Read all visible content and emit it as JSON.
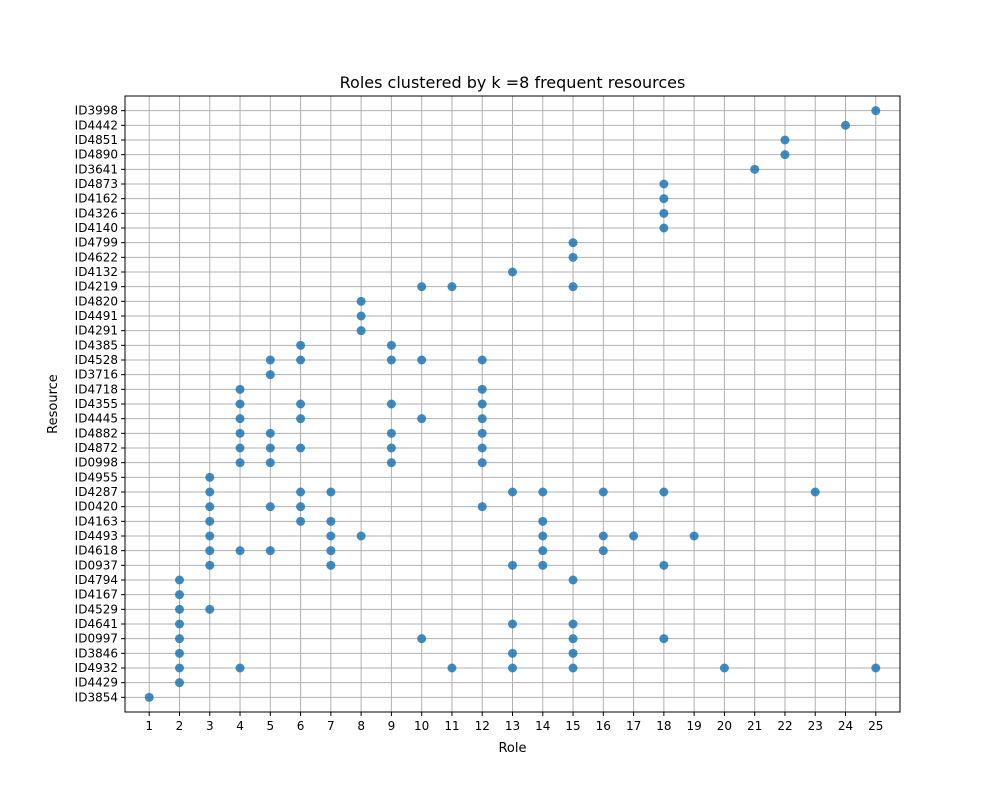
{
  "chart_data": {
    "type": "scatter",
    "title": "Roles clustered by k =8 frequent resources",
    "xlabel": "Role",
    "ylabel": "Resource",
    "x_ticks": [
      "1",
      "2",
      "3",
      "4",
      "5",
      "6",
      "7",
      "8",
      "9",
      "10",
      "11",
      "12",
      "13",
      "14",
      "15",
      "16",
      "17",
      "18",
      "19",
      "20",
      "21",
      "22",
      "23",
      "24",
      "25"
    ],
    "y_categories": [
      "ID3854",
      "ID4429",
      "ID4932",
      "ID3846",
      "ID0997",
      "ID4641",
      "ID4529",
      "ID4167",
      "ID4794",
      "ID0937",
      "ID4618",
      "ID4493",
      "ID4163",
      "ID0420",
      "ID4287",
      "ID4955",
      "ID0998",
      "ID4872",
      "ID4882",
      "ID4445",
      "ID4355",
      "ID4718",
      "ID3716",
      "ID4528",
      "ID4385",
      "ID4291",
      "ID4491",
      "ID4820",
      "ID4219",
      "ID4132",
      "ID4622",
      "ID4799",
      "ID4140",
      "ID4326",
      "ID4162",
      "ID4873",
      "ID3641",
      "ID4890",
      "ID4851",
      "ID4442",
      "ID3998"
    ],
    "xlim": [
      0.2,
      25.8
    ],
    "grid": true,
    "marker_color": "#1f77b4",
    "points": [
      {
        "x": 1,
        "y": "ID3854"
      },
      {
        "x": 2,
        "y": "ID4429"
      },
      {
        "x": 2,
        "y": "ID4932"
      },
      {
        "x": 2,
        "y": "ID3846"
      },
      {
        "x": 2,
        "y": "ID0997"
      },
      {
        "x": 2,
        "y": "ID4641"
      },
      {
        "x": 2,
        "y": "ID4529"
      },
      {
        "x": 2,
        "y": "ID4167"
      },
      {
        "x": 2,
        "y": "ID4794"
      },
      {
        "x": 3,
        "y": "ID4529"
      },
      {
        "x": 3,
        "y": "ID0937"
      },
      {
        "x": 3,
        "y": "ID4618"
      },
      {
        "x": 3,
        "y": "ID4493"
      },
      {
        "x": 3,
        "y": "ID4163"
      },
      {
        "x": 3,
        "y": "ID0420"
      },
      {
        "x": 3,
        "y": "ID4287"
      },
      {
        "x": 3,
        "y": "ID4955"
      },
      {
        "x": 4,
        "y": "ID4932"
      },
      {
        "x": 4,
        "y": "ID4618"
      },
      {
        "x": 4,
        "y": "ID0998"
      },
      {
        "x": 4,
        "y": "ID4872"
      },
      {
        "x": 4,
        "y": "ID4882"
      },
      {
        "x": 4,
        "y": "ID4445"
      },
      {
        "x": 4,
        "y": "ID4355"
      },
      {
        "x": 4,
        "y": "ID4718"
      },
      {
        "x": 5,
        "y": "ID4618"
      },
      {
        "x": 5,
        "y": "ID0420"
      },
      {
        "x": 5,
        "y": "ID0998"
      },
      {
        "x": 5,
        "y": "ID4872"
      },
      {
        "x": 5,
        "y": "ID4882"
      },
      {
        "x": 5,
        "y": "ID3716"
      },
      {
        "x": 5,
        "y": "ID4528"
      },
      {
        "x": 6,
        "y": "ID4163"
      },
      {
        "x": 6,
        "y": "ID0420"
      },
      {
        "x": 6,
        "y": "ID4287"
      },
      {
        "x": 6,
        "y": "ID4872"
      },
      {
        "x": 6,
        "y": "ID4445"
      },
      {
        "x": 6,
        "y": "ID4355"
      },
      {
        "x": 6,
        "y": "ID4528"
      },
      {
        "x": 6,
        "y": "ID4385"
      },
      {
        "x": 7,
        "y": "ID0937"
      },
      {
        "x": 7,
        "y": "ID4618"
      },
      {
        "x": 7,
        "y": "ID4493"
      },
      {
        "x": 7,
        "y": "ID4163"
      },
      {
        "x": 7,
        "y": "ID4287"
      },
      {
        "x": 8,
        "y": "ID4493"
      },
      {
        "x": 8,
        "y": "ID4291"
      },
      {
        "x": 8,
        "y": "ID4491"
      },
      {
        "x": 8,
        "y": "ID4820"
      },
      {
        "x": 9,
        "y": "ID0998"
      },
      {
        "x": 9,
        "y": "ID4872"
      },
      {
        "x": 9,
        "y": "ID4882"
      },
      {
        "x": 9,
        "y": "ID4355"
      },
      {
        "x": 9,
        "y": "ID4528"
      },
      {
        "x": 9,
        "y": "ID4385"
      },
      {
        "x": 10,
        "y": "ID0997"
      },
      {
        "x": 10,
        "y": "ID4445"
      },
      {
        "x": 10,
        "y": "ID4528"
      },
      {
        "x": 10,
        "y": "ID4219"
      },
      {
        "x": 11,
        "y": "ID4932"
      },
      {
        "x": 11,
        "y": "ID4219"
      },
      {
        "x": 12,
        "y": "ID0420"
      },
      {
        "x": 12,
        "y": "ID0998"
      },
      {
        "x": 12,
        "y": "ID4872"
      },
      {
        "x": 12,
        "y": "ID4882"
      },
      {
        "x": 12,
        "y": "ID4445"
      },
      {
        "x": 12,
        "y": "ID4355"
      },
      {
        "x": 12,
        "y": "ID4718"
      },
      {
        "x": 12,
        "y": "ID4528"
      },
      {
        "x": 13,
        "y": "ID4932"
      },
      {
        "x": 13,
        "y": "ID3846"
      },
      {
        "x": 13,
        "y": "ID4641"
      },
      {
        "x": 13,
        "y": "ID0937"
      },
      {
        "x": 13,
        "y": "ID4287"
      },
      {
        "x": 13,
        "y": "ID4132"
      },
      {
        "x": 14,
        "y": "ID0937"
      },
      {
        "x": 14,
        "y": "ID4618"
      },
      {
        "x": 14,
        "y": "ID4493"
      },
      {
        "x": 14,
        "y": "ID4163"
      },
      {
        "x": 14,
        "y": "ID4287"
      },
      {
        "x": 15,
        "y": "ID4932"
      },
      {
        "x": 15,
        "y": "ID3846"
      },
      {
        "x": 15,
        "y": "ID0997"
      },
      {
        "x": 15,
        "y": "ID4641"
      },
      {
        "x": 15,
        "y": "ID4794"
      },
      {
        "x": 15,
        "y": "ID4219"
      },
      {
        "x": 15,
        "y": "ID4622"
      },
      {
        "x": 15,
        "y": "ID4799"
      },
      {
        "x": 16,
        "y": "ID4618"
      },
      {
        "x": 16,
        "y": "ID4493"
      },
      {
        "x": 16,
        "y": "ID4287"
      },
      {
        "x": 17,
        "y": "ID4493"
      },
      {
        "x": 18,
        "y": "ID0997"
      },
      {
        "x": 18,
        "y": "ID0937"
      },
      {
        "x": 18,
        "y": "ID4287"
      },
      {
        "x": 18,
        "y": "ID4140"
      },
      {
        "x": 18,
        "y": "ID4326"
      },
      {
        "x": 18,
        "y": "ID4162"
      },
      {
        "x": 18,
        "y": "ID4873"
      },
      {
        "x": 19,
        "y": "ID4493"
      },
      {
        "x": 20,
        "y": "ID4932"
      },
      {
        "x": 21,
        "y": "ID3641"
      },
      {
        "x": 22,
        "y": "ID4890"
      },
      {
        "x": 22,
        "y": "ID4851"
      },
      {
        "x": 23,
        "y": "ID4287"
      },
      {
        "x": 24,
        "y": "ID4442"
      },
      {
        "x": 25,
        "y": "ID4932"
      },
      {
        "x": 25,
        "y": "ID3998"
      }
    ]
  }
}
